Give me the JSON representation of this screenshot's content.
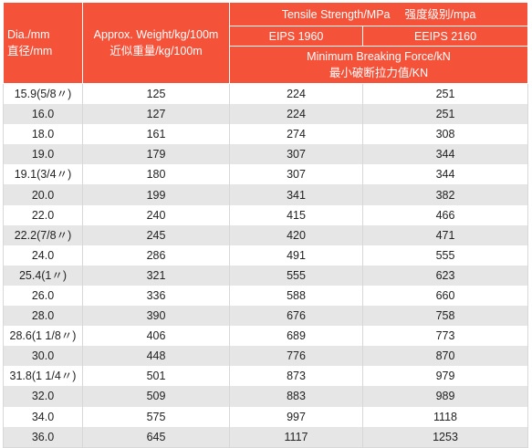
{
  "table": {
    "header": {
      "dia_line1": "Dia./mm",
      "dia_line2": "直径/mm",
      "weight_line1": "Approx. Weight/kg/100m",
      "weight_line2": "近似重量/kg/100m",
      "tensile_en": "Tensile Strength/MPa",
      "tensile_cn": "强度级别/mpa",
      "grade1": "EIPS 1960",
      "grade2": "EEIPS 2160",
      "force_en": "Minimum Breaking Force/kN",
      "force_cn": "最小破断拉力值/KN"
    },
    "rows": [
      {
        "dia": "15.9(5/8〃)",
        "weight": "125",
        "f1": "224",
        "f2": "251"
      },
      {
        "dia": "16.0",
        "weight": "127",
        "f1": "224",
        "f2": "251"
      },
      {
        "dia": "18.0",
        "weight": "161",
        "f1": "274",
        "f2": "308"
      },
      {
        "dia": "19.0",
        "weight": "179",
        "f1": "307",
        "f2": "344"
      },
      {
        "dia": "19.1(3/4〃)",
        "weight": "180",
        "f1": "307",
        "f2": "344"
      },
      {
        "dia": "20.0",
        "weight": "199",
        "f1": "341",
        "f2": "382"
      },
      {
        "dia": "22.0",
        "weight": "240",
        "f1": "415",
        "f2": "466"
      },
      {
        "dia": "22.2(7/8〃)",
        "weight": "245",
        "f1": "420",
        "f2": "471"
      },
      {
        "dia": "24.0",
        "weight": "286",
        "f1": "491",
        "f2": "555"
      },
      {
        "dia": "25.4(1〃)",
        "weight": "321",
        "f1": "555",
        "f2": "623"
      },
      {
        "dia": "26.0",
        "weight": "336",
        "f1": "588",
        "f2": "660"
      },
      {
        "dia": "28.0",
        "weight": "390",
        "f1": "676",
        "f2": "758"
      },
      {
        "dia": "28.6(1 1/8〃)",
        "weight": "406",
        "f1": "689",
        "f2": "773"
      },
      {
        "dia": "30.0",
        "weight": "448",
        "f1": "776",
        "f2": "870"
      },
      {
        "dia": "31.8(1 1/4〃)",
        "weight": "501",
        "f1": "873",
        "f2": "979"
      },
      {
        "dia": "32.0",
        "weight": "509",
        "f1": "883",
        "f2": "989"
      },
      {
        "dia": "34.0",
        "weight": "575",
        "f1": "997",
        "f2": "1118"
      },
      {
        "dia": "36.0",
        "weight": "645",
        "f1": "1117",
        "f2": "1253"
      }
    ]
  }
}
